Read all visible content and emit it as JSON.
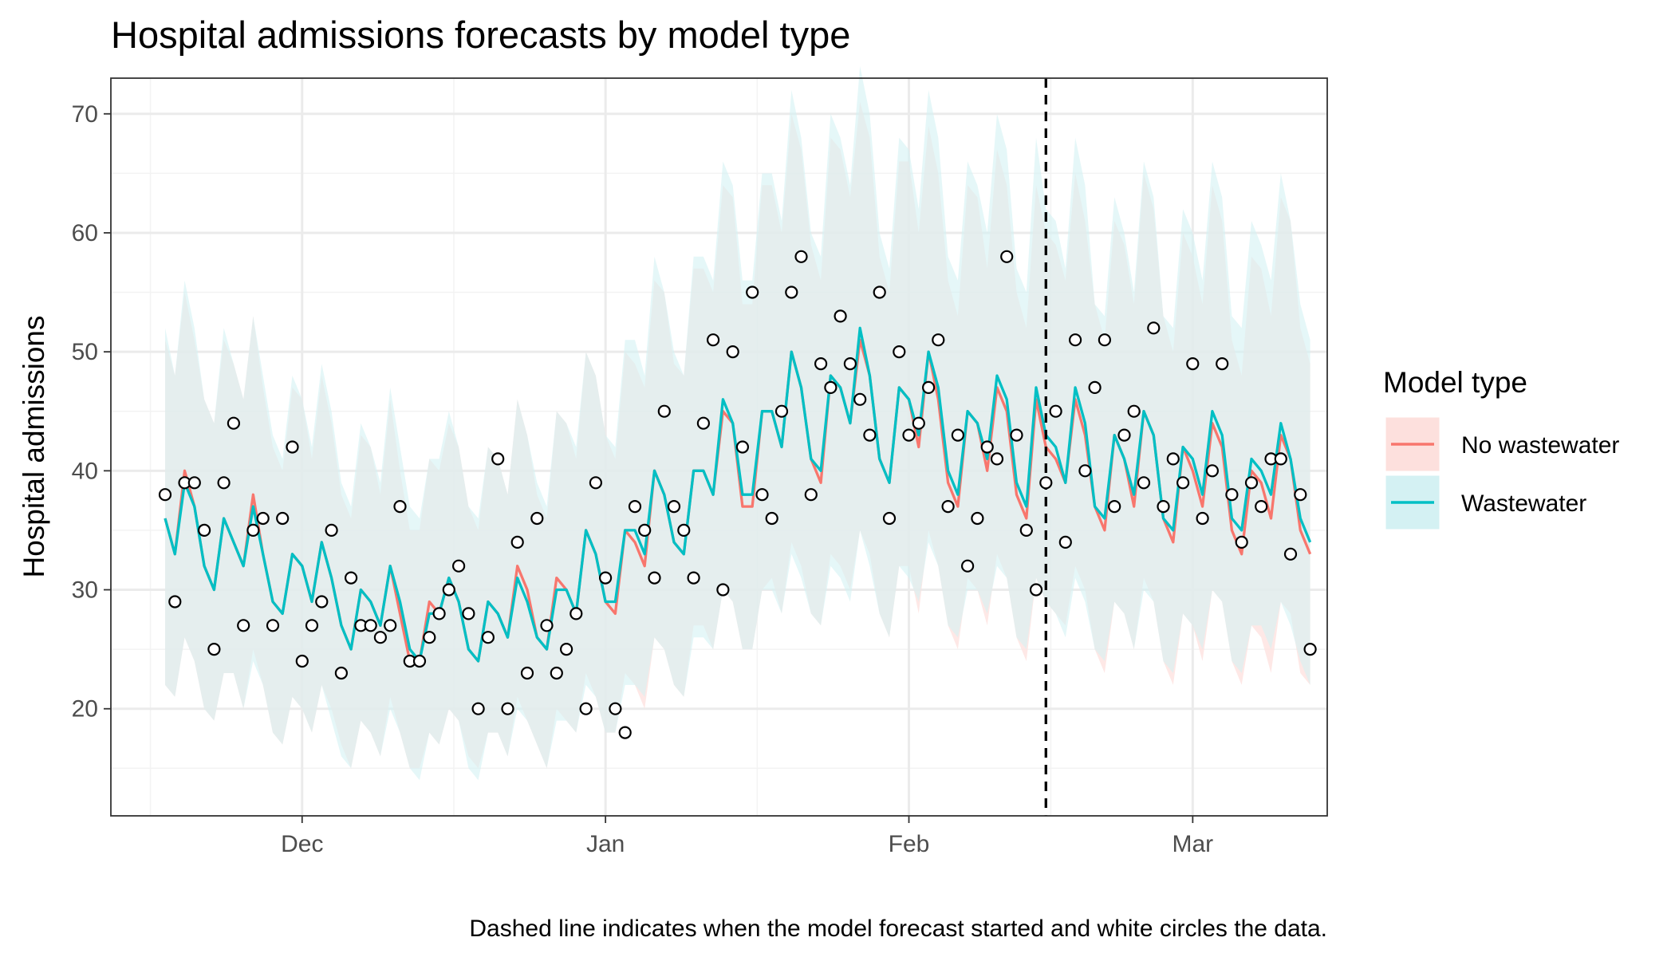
{
  "chart_data": {
    "type": "line",
    "title": "Hospital admissions forecasts by model type",
    "ylabel": "Hospital admissions",
    "xlabel": "",
    "caption": "Dashed line indicates when the model forecast started and white circles the data.",
    "x_start": "2023-11-17",
    "forecast_start": "2024-02-15",
    "ylim": [
      11,
      73
    ],
    "y_ticks": [
      20,
      30,
      40,
      50,
      60,
      70
    ],
    "x_ticks": [
      {
        "date": "2023-12-01",
        "label": "Dec"
      },
      {
        "date": "2024-01-01",
        "label": "Jan"
      },
      {
        "date": "2024-02-01",
        "label": "Feb"
      },
      {
        "date": "2024-03-01",
        "label": "Mar"
      }
    ],
    "grid": true,
    "legend": {
      "title": "Model type",
      "placement": "right",
      "entries": [
        {
          "label": "No wastewater",
          "line_color": "#F8766D",
          "fill_color": "#FDE0DD"
        },
        {
          "label": "Wastewater",
          "line_color": "#00BFC4",
          "fill_color": "#D4F1F3"
        }
      ]
    },
    "observed": [
      38,
      29,
      39,
      39,
      35,
      25,
      39,
      44,
      27,
      35,
      36,
      27,
      36,
      42,
      24,
      27,
      29,
      35,
      23,
      31,
      27,
      27,
      26,
      27,
      37,
      24,
      24,
      26,
      28,
      30,
      32,
      28,
      20,
      26,
      41,
      20,
      34,
      23,
      36,
      27,
      23,
      25,
      28,
      20,
      39,
      31,
      20,
      18,
      37,
      35,
      31,
      45,
      37,
      35,
      31,
      44,
      51,
      30,
      50,
      42,
      55,
      38,
      36,
      45,
      55,
      58,
      38,
      49,
      47,
      53,
      49,
      46,
      43,
      55,
      36,
      50,
      43,
      44,
      47,
      51,
      37,
      43,
      32,
      36,
      42,
      41,
      58,
      43,
      35,
      30,
      39,
      45,
      34,
      51,
      40,
      47,
      51,
      37,
      43,
      45,
      39,
      52,
      37,
      41,
      39,
      49,
      36,
      40,
      49,
      38,
      34,
      39,
      37,
      41,
      41,
      33,
      38,
      25
    ],
    "series": [
      {
        "name": "No wastewater",
        "median": [
          36,
          33,
          40,
          37,
          32,
          30,
          36,
          34,
          32,
          38,
          33,
          29,
          28,
          33,
          32,
          29,
          34,
          31,
          27,
          25,
          30,
          29,
          27,
          32,
          28,
          24,
          24,
          29,
          28,
          31,
          29,
          25,
          24,
          29,
          28,
          26,
          32,
          30,
          26,
          25,
          31,
          30,
          28,
          35,
          33,
          29,
          28,
          35,
          34,
          32,
          40,
          38,
          34,
          33,
          40,
          40,
          38,
          45,
          44,
          37,
          37,
          45,
          45,
          42,
          50,
          47,
          41,
          39,
          48,
          47,
          44,
          51,
          48,
          41,
          39,
          47,
          46,
          42,
          50,
          46,
          39,
          37,
          45,
          44,
          40,
          47,
          45,
          38,
          36,
          46,
          42,
          41,
          39,
          46,
          43,
          37,
          35,
          43,
          41,
          37,
          45,
          43,
          36,
          34,
          42,
          40,
          37,
          44,
          42,
          35,
          33,
          40,
          39,
          36,
          43,
          41,
          35,
          33
        ],
        "lower": [
          22,
          21,
          26,
          24,
          20,
          19,
          23,
          23,
          20,
          25,
          22,
          18,
          17,
          21,
          20,
          18,
          22,
          20,
          17,
          15,
          19,
          18,
          16,
          21,
          18,
          15,
          15,
          18,
          17,
          20,
          19,
          16,
          15,
          18,
          18,
          16,
          21,
          19,
          17,
          15,
          20,
          19,
          18,
          23,
          21,
          18,
          18,
          23,
          22,
          20,
          26,
          25,
          22,
          21,
          27,
          27,
          25,
          30,
          29,
          25,
          25,
          30,
          31,
          28,
          34,
          32,
          28,
          27,
          33,
          32,
          30,
          35,
          33,
          28,
          26,
          32,
          32,
          28,
          35,
          32,
          27,
          25,
          31,
          30,
          27,
          33,
          31,
          26,
          24,
          31,
          29,
          28,
          27,
          32,
          30,
          25,
          23,
          29,
          28,
          25,
          31,
          29,
          24,
          22,
          28,
          27,
          24,
          30,
          29,
          24,
          22,
          27,
          26,
          23,
          29,
          28,
          23,
          22
        ],
        "upper": [
          51,
          48,
          55,
          51,
          46,
          44,
          51,
          49,
          46,
          53,
          47,
          42,
          40,
          47,
          46,
          41,
          48,
          44,
          38,
          36,
          43,
          42,
          38,
          46,
          40,
          35,
          35,
          41,
          40,
          44,
          42,
          37,
          35,
          42,
          41,
          38,
          46,
          43,
          38,
          36,
          45,
          44,
          41,
          50,
          48,
          43,
          41,
          50,
          49,
          47,
          56,
          55,
          49,
          48,
          57,
          57,
          55,
          64,
          63,
          54,
          54,
          64,
          64,
          60,
          70,
          67,
          59,
          56,
          68,
          67,
          63,
          71,
          68,
          58,
          55,
          66,
          66,
          60,
          69,
          65,
          56,
          53,
          64,
          63,
          57,
          67,
          64,
          55,
          52,
          64,
          60,
          59,
          56,
          65,
          61,
          54,
          51,
          61,
          59,
          54,
          65,
          62,
          53,
          50,
          60,
          58,
          54,
          64,
          61,
          51,
          48,
          58,
          57,
          53,
          63,
          61,
          52,
          49
        ]
      },
      {
        "name": "Wastewater",
        "median": [
          36,
          33,
          39,
          37,
          32,
          30,
          36,
          34,
          32,
          37,
          33,
          29,
          28,
          33,
          32,
          29,
          34,
          31,
          27,
          25,
          30,
          29,
          27,
          32,
          29,
          25,
          24,
          28,
          28,
          31,
          29,
          25,
          24,
          29,
          28,
          26,
          31,
          29,
          26,
          25,
          30,
          30,
          28,
          35,
          33,
          29,
          29,
          35,
          35,
          33,
          40,
          38,
          34,
          33,
          40,
          40,
          38,
          46,
          44,
          38,
          38,
          45,
          45,
          42,
          50,
          47,
          41,
          40,
          48,
          47,
          44,
          52,
          48,
          41,
          39,
          47,
          46,
          43,
          50,
          47,
          40,
          38,
          45,
          44,
          41,
          48,
          46,
          39,
          37,
          47,
          43,
          42,
          39,
          47,
          44,
          37,
          36,
          43,
          41,
          38,
          45,
          43,
          36,
          35,
          42,
          41,
          38,
          45,
          43,
          36,
          35,
          41,
          40,
          38,
          44,
          41,
          36,
          34
        ],
        "lower": [
          22,
          21,
          26,
          24,
          20,
          19,
          23,
          23,
          20,
          24,
          22,
          18,
          17,
          21,
          20,
          18,
          22,
          19,
          16,
          15,
          19,
          18,
          16,
          20,
          18,
          15,
          14,
          18,
          17,
          20,
          19,
          15,
          14,
          18,
          18,
          16,
          20,
          19,
          17,
          15,
          19,
          19,
          18,
          22,
          21,
          18,
          18,
          22,
          22,
          21,
          26,
          25,
          22,
          21,
          26,
          26,
          25,
          30,
          29,
          25,
          25,
          30,
          30,
          28,
          33,
          31,
          28,
          27,
          32,
          31,
          29,
          35,
          32,
          28,
          26,
          32,
          31,
          29,
          34,
          32,
          27,
          26,
          30,
          30,
          28,
          32,
          31,
          26,
          25,
          31,
          29,
          28,
          26,
          31,
          29,
          25,
          24,
          29,
          28,
          25,
          30,
          29,
          24,
          23,
          28,
          27,
          25,
          30,
          29,
          24,
          23,
          27,
          27,
          25,
          29,
          27,
          24,
          22
        ],
        "upper": [
          52,
          48,
          56,
          52,
          46,
          44,
          52,
          49,
          46,
          53,
          48,
          43,
          41,
          48,
          46,
          42,
          49,
          45,
          39,
          37,
          44,
          42,
          39,
          47,
          42,
          37,
          36,
          41,
          41,
          45,
          42,
          37,
          36,
          42,
          41,
          38,
          46,
          43,
          39,
          37,
          45,
          44,
          42,
          50,
          48,
          43,
          42,
          51,
          51,
          48,
          58,
          55,
          50,
          48,
          58,
          58,
          56,
          66,
          64,
          56,
          56,
          65,
          65,
          61,
          72,
          68,
          60,
          58,
          70,
          68,
          64,
          74,
          70,
          60,
          57,
          68,
          67,
          62,
          72,
          68,
          58,
          56,
          66,
          64,
          60,
          70,
          67,
          57,
          55,
          68,
          62,
          61,
          57,
          68,
          64,
          54,
          53,
          63,
          60,
          55,
          66,
          63,
          53,
          52,
          62,
          60,
          56,
          66,
          63,
          53,
          52,
          61,
          59,
          56,
          65,
          61,
          54,
          51
        ]
      }
    ]
  }
}
